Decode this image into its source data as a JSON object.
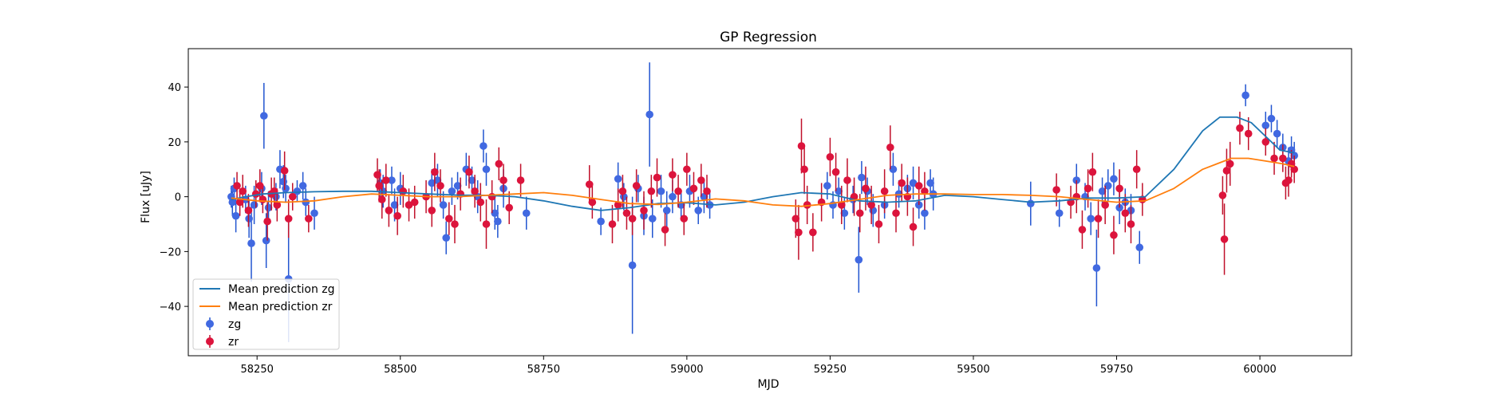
{
  "chart_data": {
    "type": "scatter",
    "title": "GP Regression",
    "xlabel": "MJD",
    "ylabel": "Flux [uJy]",
    "xlim": [
      58130,
      60160
    ],
    "ylim": [
      -58,
      54
    ],
    "xticks": [
      58250,
      58500,
      58750,
      59000,
      59250,
      59500,
      59750,
      60000
    ],
    "yticks": [
      -40,
      -20,
      0,
      20,
      40
    ],
    "legend_position": "lower-left",
    "colors": {
      "zg": "#4169e1",
      "zr": "#dc143c",
      "mean_zg": "#1f77b4",
      "mean_zr": "#ff7f0e",
      "err_zg": "#2255d0",
      "err_zr": "#c0102a"
    },
    "series": [
      {
        "name": "Mean prediction zg",
        "kind": "line",
        "x": [
          58205,
          58230,
          58260,
          58300,
          58350,
          58400,
          58450,
          58500,
          58550,
          58600,
          58650,
          58700,
          58750,
          58800,
          58850,
          58900,
          58950,
          59000,
          59050,
          59100,
          59150,
          59200,
          59250,
          59300,
          59350,
          59400,
          59450,
          59500,
          59550,
          59600,
          59650,
          59700,
          59750,
          59800,
          59850,
          59900,
          59930,
          59960,
          59985,
          60010,
          60035,
          60060
        ],
        "y": [
          -1.0,
          0.0,
          1.0,
          1.5,
          1.8,
          2.0,
          2.0,
          1.5,
          1.0,
          0.6,
          0.5,
          0.0,
          -1.5,
          -3.5,
          -5.0,
          -4.0,
          -2.5,
          -2.2,
          -3.0,
          -2.0,
          0.0,
          1.5,
          1.0,
          -1.5,
          -2.0,
          -1.5,
          0.5,
          0.0,
          -1.0,
          -2.0,
          -1.5,
          -0.5,
          -0.5,
          0.0,
          10.0,
          24.0,
          29.0,
          29.0,
          27.0,
          22.0,
          17.0,
          16.0
        ]
      },
      {
        "name": "Mean prediction zr",
        "kind": "line",
        "x": [
          58205,
          58250,
          58300,
          58350,
          58400,
          58450,
          58500,
          58550,
          58600,
          58650,
          58700,
          58750,
          58800,
          58850,
          58900,
          58950,
          59000,
          59050,
          59100,
          59150,
          59200,
          59250,
          59300,
          59350,
          59400,
          59450,
          59500,
          59550,
          59600,
          59650,
          59700,
          59750,
          59800,
          59850,
          59900,
          59950,
          59980,
          60010,
          60040,
          60060
        ],
        "y": [
          -0.5,
          -1.5,
          -2.0,
          -1.5,
          0.0,
          1.0,
          0.5,
          0.0,
          0.0,
          0.5,
          1.0,
          1.5,
          0.5,
          -1.0,
          -2.5,
          -2.8,
          -2.0,
          -0.8,
          -1.5,
          -3.0,
          -3.5,
          -2.5,
          -1.0,
          0.5,
          1.0,
          1.0,
          0.8,
          0.8,
          0.5,
          0.0,
          -1.0,
          -2.0,
          -1.5,
          3.0,
          10.0,
          14.0,
          14.0,
          13.0,
          12.0,
          11.0
        ]
      },
      {
        "name": "zg",
        "kind": "errorbar",
        "points": [
          [
            58205,
            0,
            4
          ],
          [
            58207,
            -2,
            5
          ],
          [
            58210,
            3,
            4
          ],
          [
            58213,
            -7,
            6
          ],
          [
            58230,
            -1,
            5
          ],
          [
            58236,
            -8,
            7
          ],
          [
            58240,
            -17,
            14
          ],
          [
            58245,
            -3,
            7
          ],
          [
            58258,
            3,
            6
          ],
          [
            58262,
            29.5,
            12
          ],
          [
            58266,
            -16,
            10
          ],
          [
            58270,
            -4,
            6
          ],
          [
            58283,
            0,
            5
          ],
          [
            58290,
            10,
            7
          ],
          [
            58296,
            5.5,
            6
          ],
          [
            58300,
            3,
            5
          ],
          [
            58305,
            -30,
            23
          ],
          [
            58320,
            2,
            4
          ],
          [
            58330,
            4,
            5
          ],
          [
            58335,
            -2,
            5
          ],
          [
            58350,
            -6,
            6
          ],
          [
            58465,
            5,
            5
          ],
          [
            58470,
            2,
            6
          ],
          [
            58485,
            6,
            5
          ],
          [
            58490,
            -3,
            6
          ],
          [
            58500,
            3,
            6
          ],
          [
            58555,
            5,
            5
          ],
          [
            58565,
            6,
            6
          ],
          [
            58575,
            -3,
            5
          ],
          [
            58580,
            -15,
            6
          ],
          [
            58590,
            2,
            5
          ],
          [
            58600,
            4,
            5
          ],
          [
            58615,
            10,
            6
          ],
          [
            58625,
            6,
            5
          ],
          [
            58635,
            0,
            6
          ],
          [
            58645,
            18.5,
            6
          ],
          [
            58650,
            10,
            6
          ],
          [
            58665,
            -6,
            6
          ],
          [
            58670,
            -9,
            6
          ],
          [
            58680,
            3,
            7
          ],
          [
            58720,
            -6,
            6
          ],
          [
            58850,
            -9,
            5
          ],
          [
            58880,
            6.5,
            6
          ],
          [
            58890,
            0,
            5
          ],
          [
            58905,
            -25,
            25
          ],
          [
            58915,
            3,
            5
          ],
          [
            58925,
            -7,
            7
          ],
          [
            58935,
            30,
            19
          ],
          [
            58940,
            -8,
            7
          ],
          [
            58955,
            2,
            6
          ],
          [
            58965,
            -5,
            7
          ],
          [
            58975,
            0,
            6
          ],
          [
            58990,
            -3,
            5
          ],
          [
            59005,
            2,
            6
          ],
          [
            59020,
            -5,
            5
          ],
          [
            59030,
            0,
            6
          ],
          [
            59040,
            -3,
            5
          ],
          [
            59245,
            4,
            5
          ],
          [
            59255,
            -3,
            5
          ],
          [
            59265,
            2,
            5
          ],
          [
            59275,
            -6,
            6
          ],
          [
            59290,
            -1,
            5
          ],
          [
            59300,
            -23,
            12
          ],
          [
            59305,
            7,
            6
          ],
          [
            59315,
            2,
            5
          ],
          [
            59325,
            -5,
            6
          ],
          [
            59345,
            -3,
            5
          ],
          [
            59360,
            10,
            6
          ],
          [
            59370,
            1,
            5
          ],
          [
            59385,
            3,
            5
          ],
          [
            59395,
            5,
            6
          ],
          [
            59405,
            -3,
            5
          ],
          [
            59415,
            -6,
            6
          ],
          [
            59425,
            5,
            5
          ],
          [
            59430,
            1,
            6
          ],
          [
            59600,
            -2.5,
            8
          ],
          [
            59650,
            -6,
            5
          ],
          [
            59680,
            6,
            6
          ],
          [
            59695,
            0,
            5
          ],
          [
            59705,
            -8,
            6
          ],
          [
            59715,
            -26,
            14
          ],
          [
            59725,
            2,
            5
          ],
          [
            59735,
            4,
            6
          ],
          [
            59745,
            6.5,
            6
          ],
          [
            59755,
            -4,
            6
          ],
          [
            59765,
            -2,
            5
          ],
          [
            59775,
            -5,
            6
          ],
          [
            59790,
            -18.5,
            6
          ],
          [
            59975,
            37,
            4
          ],
          [
            60010,
            26,
            5
          ],
          [
            60020,
            28.5,
            5
          ],
          [
            60030,
            23,
            5
          ],
          [
            60040,
            18,
            5
          ],
          [
            60050,
            13,
            5
          ],
          [
            60055,
            17,
            5
          ],
          [
            60060,
            15,
            5
          ]
        ]
      },
      {
        "name": "zr",
        "kind": "errorbar",
        "points": [
          [
            58215,
            4,
            5
          ],
          [
            58220,
            -2,
            5
          ],
          [
            58225,
            2,
            6
          ],
          [
            58235,
            -5,
            6
          ],
          [
            58248,
            1,
            5
          ],
          [
            58255,
            4,
            6
          ],
          [
            58260,
            -1,
            5
          ],
          [
            58268,
            -9,
            7
          ],
          [
            58275,
            1,
            6
          ],
          [
            58280,
            2,
            5
          ],
          [
            58285,
            -3,
            6
          ],
          [
            58298,
            9.5,
            7
          ],
          [
            58305,
            -8,
            7
          ],
          [
            58312,
            0,
            5
          ],
          [
            58340,
            -8,
            5
          ],
          [
            58460,
            8,
            6
          ],
          [
            58463,
            4,
            6
          ],
          [
            58468,
            -1,
            7
          ],
          [
            58475,
            6,
            6
          ],
          [
            58480,
            -5,
            6
          ],
          [
            58495,
            -7,
            7
          ],
          [
            58505,
            2,
            6
          ],
          [
            58515,
            -3,
            6
          ],
          [
            58525,
            -2,
            6
          ],
          [
            58545,
            0,
            6
          ],
          [
            58555,
            -5,
            6
          ],
          [
            58560,
            9,
            7
          ],
          [
            58570,
            4,
            6
          ],
          [
            58585,
            -8,
            6
          ],
          [
            58595,
            -10,
            7
          ],
          [
            58605,
            1,
            6
          ],
          [
            58620,
            9,
            6
          ],
          [
            58630,
            2,
            6
          ],
          [
            58640,
            -2,
            7
          ],
          [
            58650,
            -10,
            9
          ],
          [
            58660,
            0,
            6
          ],
          [
            58672,
            12,
            6
          ],
          [
            58680,
            6,
            6
          ],
          [
            58690,
            -4,
            6
          ],
          [
            58710,
            6,
            6
          ],
          [
            58830,
            4.5,
            7
          ],
          [
            58835,
            -2,
            6
          ],
          [
            58870,
            -10,
            7
          ],
          [
            58880,
            -3,
            6
          ],
          [
            58888,
            2,
            6
          ],
          [
            58895,
            -6,
            6
          ],
          [
            58905,
            -8,
            6
          ],
          [
            58912,
            4,
            6
          ],
          [
            58925,
            -5,
            7
          ],
          [
            58938,
            2,
            6
          ],
          [
            58948,
            7,
            7
          ],
          [
            58962,
            -12,
            6
          ],
          [
            58975,
            8,
            6
          ],
          [
            58985,
            2,
            6
          ],
          [
            58995,
            -8,
            6
          ],
          [
            59000,
            10,
            6
          ],
          [
            59012,
            3,
            6
          ],
          [
            59025,
            6,
            6
          ],
          [
            59035,
            2,
            6
          ],
          [
            59190,
            -8,
            7
          ],
          [
            59195,
            -13,
            10
          ],
          [
            59200,
            18.5,
            10
          ],
          [
            59205,
            10,
            9
          ],
          [
            59210,
            -3,
            7
          ],
          [
            59220,
            -13,
            7
          ],
          [
            59235,
            -2,
            7
          ],
          [
            59250,
            14.5,
            7
          ],
          [
            59260,
            9,
            7
          ],
          [
            59270,
            -3,
            7
          ],
          [
            59280,
            6,
            8
          ],
          [
            59292,
            0,
            7
          ],
          [
            59302,
            -6,
            7
          ],
          [
            59312,
            3,
            8
          ],
          [
            59322,
            -3,
            7
          ],
          [
            59335,
            -10,
            7
          ],
          [
            59345,
            2,
            8
          ],
          [
            59355,
            18,
            8
          ],
          [
            59365,
            -6,
            7
          ],
          [
            59375,
            5,
            7
          ],
          [
            59385,
            0,
            7
          ],
          [
            59395,
            -11,
            7
          ],
          [
            59405,
            4,
            7
          ],
          [
            59415,
            2,
            7
          ],
          [
            59645,
            2.5,
            6
          ],
          [
            59670,
            -2,
            6
          ],
          [
            59680,
            0,
            6
          ],
          [
            59690,
            -12,
            7
          ],
          [
            59700,
            3,
            7
          ],
          [
            59708,
            9,
            7
          ],
          [
            59718,
            -8,
            7
          ],
          [
            59730,
            -3,
            7
          ],
          [
            59745,
            -14,
            7
          ],
          [
            59755,
            3,
            7
          ],
          [
            59765,
            -6,
            7
          ],
          [
            59775,
            -10,
            7
          ],
          [
            59785,
            10,
            7
          ],
          [
            59795,
            -1,
            6
          ],
          [
            59935,
            0.5,
            7
          ],
          [
            59938,
            -15.5,
            13
          ],
          [
            59942,
            9.5,
            8
          ],
          [
            59948,
            12,
            8
          ],
          [
            59965,
            25,
            6
          ],
          [
            59980,
            23,
            6
          ],
          [
            60010,
            20,
            5
          ],
          [
            60025,
            14,
            6
          ],
          [
            60040,
            14,
            5
          ],
          [
            60045,
            5,
            6
          ],
          [
            60050,
            6,
            6
          ],
          [
            60055,
            12,
            5
          ],
          [
            60060,
            10,
            5
          ]
        ]
      }
    ]
  }
}
